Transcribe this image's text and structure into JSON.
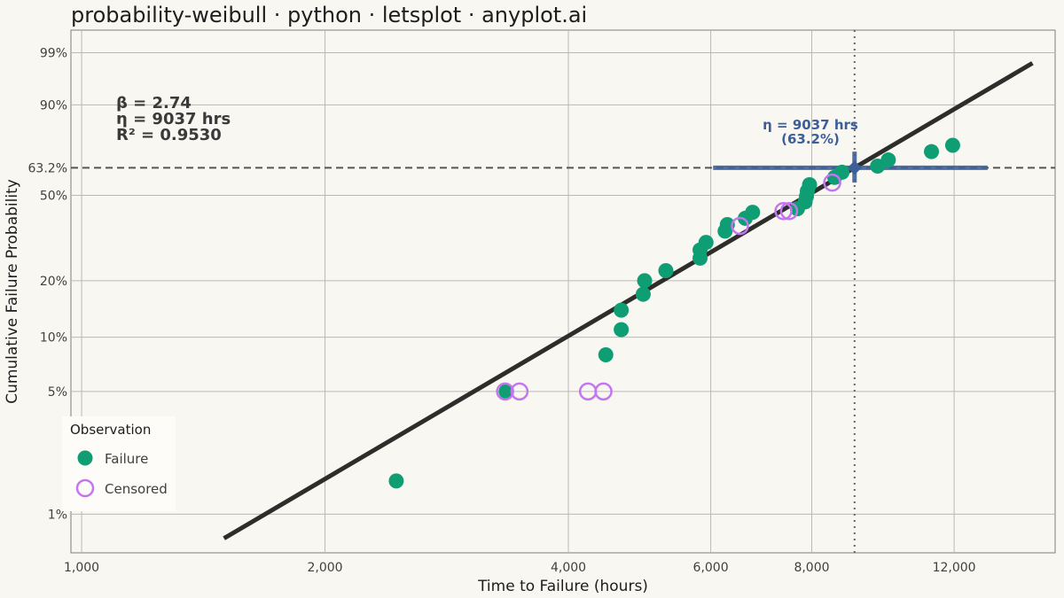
{
  "chart_data": {
    "type": "scatter",
    "title": "probability-weibull · python · letsplot · anyplot.ai",
    "xlabel": "Time to Failure (hours)",
    "ylabel": "Cumulative Failure Probability",
    "x_scale": "log",
    "y_scale": "weibull",
    "xlim": [
      970,
      16000
    ],
    "ylim": [
      0.006,
      0.998
    ],
    "x_ticks": [
      {
        "value": 1000,
        "label": "1,000"
      },
      {
        "value": 2000,
        "label": "2,000"
      },
      {
        "value": 4000,
        "label": "4,000"
      },
      {
        "value": 6000,
        "label": "6,000"
      },
      {
        "value": 8000,
        "label": "8,000"
      },
      {
        "value": 12000,
        "label": "12,000"
      }
    ],
    "y_ticks": [
      {
        "value": 0.01,
        "label": "1%"
      },
      {
        "value": 0.05,
        "label": "5%"
      },
      {
        "value": 0.1,
        "label": "10%"
      },
      {
        "value": 0.2,
        "label": "20%"
      },
      {
        "value": 0.5,
        "label": "50%"
      },
      {
        "value": 0.632,
        "label": "63.2%"
      },
      {
        "value": 0.9,
        "label": "90%"
      },
      {
        "value": 0.99,
        "label": "99%"
      }
    ],
    "grid": true,
    "legend": {
      "title": "Observation",
      "placement": "bottom-left"
    },
    "series": [
      {
        "name": "Failure",
        "marker": "filled-circle",
        "color": "#0f9e74",
        "points": [
          {
            "x": 2450,
            "y": 0.0155
          },
          {
            "x": 3350,
            "y": 0.05
          },
          {
            "x": 4450,
            "y": 0.08
          },
          {
            "x": 4650,
            "y": 0.11
          },
          {
            "x": 4650,
            "y": 0.14
          },
          {
            "x": 4950,
            "y": 0.17
          },
          {
            "x": 4970,
            "y": 0.2
          },
          {
            "x": 5280,
            "y": 0.225
          },
          {
            "x": 5820,
            "y": 0.26
          },
          {
            "x": 5820,
            "y": 0.285
          },
          {
            "x": 5920,
            "y": 0.31
          },
          {
            "x": 6250,
            "y": 0.35
          },
          {
            "x": 6290,
            "y": 0.375
          },
          {
            "x": 6620,
            "y": 0.4
          },
          {
            "x": 6760,
            "y": 0.425
          },
          {
            "x": 7680,
            "y": 0.44
          },
          {
            "x": 7850,
            "y": 0.47
          },
          {
            "x": 7880,
            "y": 0.495
          },
          {
            "x": 7900,
            "y": 0.52
          },
          {
            "x": 7950,
            "y": 0.55
          },
          {
            "x": 8540,
            "y": 0.585
          },
          {
            "x": 8720,
            "y": 0.61
          },
          {
            "x": 9650,
            "y": 0.64
          },
          {
            "x": 9950,
            "y": 0.67
          },
          {
            "x": 11250,
            "y": 0.71
          },
          {
            "x": 11950,
            "y": 0.74
          }
        ]
      },
      {
        "name": "Censored",
        "marker": "open-circle",
        "color": "#c475f0",
        "points": [
          {
            "x": 3340,
            "y": 0.05
          },
          {
            "x": 3480,
            "y": 0.05
          },
          {
            "x": 4230,
            "y": 0.05
          },
          {
            "x": 4420,
            "y": 0.05
          },
          {
            "x": 6520,
            "y": 0.37
          },
          {
            "x": 7380,
            "y": 0.43
          },
          {
            "x": 7500,
            "y": 0.43
          },
          {
            "x": 8480,
            "y": 0.56
          }
        ]
      }
    ],
    "fit_line": {
      "beta": 2.74,
      "eta": 9037,
      "x_range": [
        1500,
        15000
      ],
      "color": "#2d2d2b"
    },
    "reference_lines": {
      "horizontal": {
        "y": 0.632,
        "style": "dashed"
      },
      "vertical": {
        "x": 9037,
        "style": "dotted"
      }
    },
    "eta_marker": {
      "x": 9037,
      "y": 0.632,
      "color": "#3c5e99",
      "h_range": [
        6040,
        13200
      ],
      "v_range": [
        0.56,
        0.71
      ],
      "label_line1": "η = 9037 hrs",
      "label_line2": "(63.2%)"
    },
    "annotations": [
      "β = 2.74",
      "η = 9037 hrs",
      "R² = 0.9530"
    ]
  }
}
